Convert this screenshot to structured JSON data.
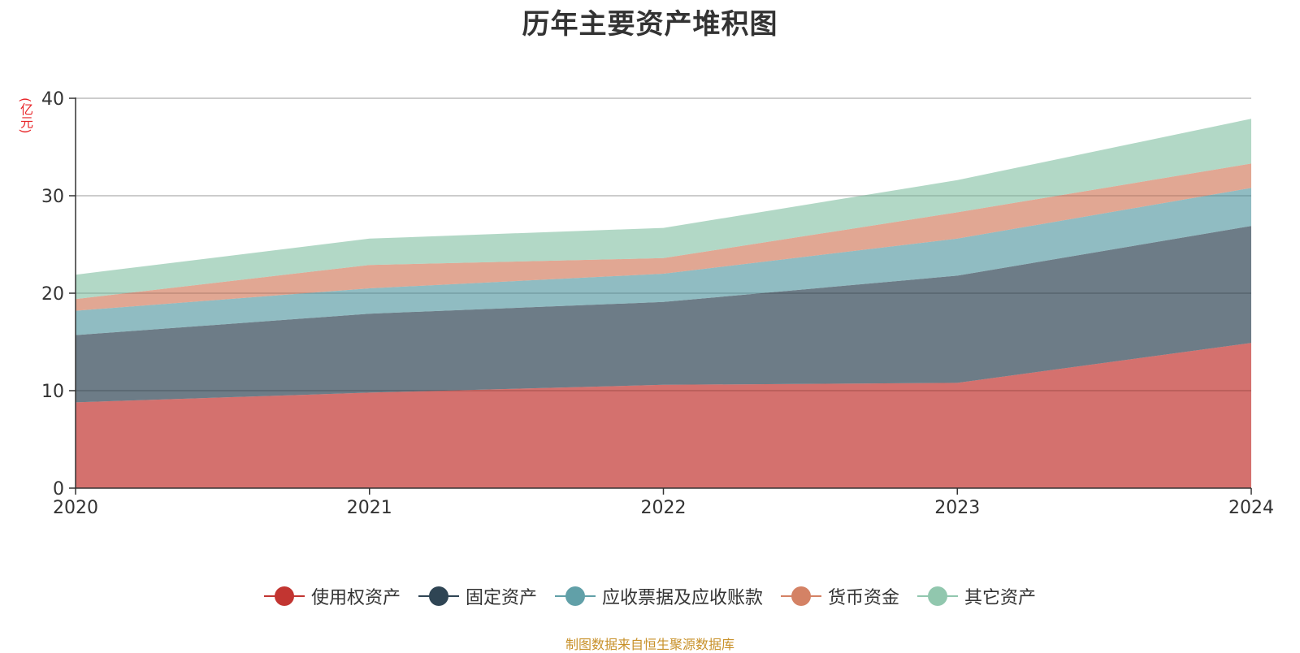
{
  "chart_data": {
    "type": "area",
    "stacked": true,
    "title": "历年主要资产堆积图",
    "unit": "(亿元)",
    "source": "制图数据来自恒生聚源数据库",
    "x": [
      "2020",
      "2021",
      "2022",
      "2023",
      "2024"
    ],
    "ylim": [
      0,
      40
    ],
    "yticks": [
      "0",
      "10",
      "20",
      "30",
      "40"
    ],
    "grid": true,
    "legend_position": "bottom",
    "series": [
      {
        "name": "使用权资产",
        "color": "#c23531",
        "values": [
          8.8,
          9.8,
          10.6,
          10.8,
          14.9
        ]
      },
      {
        "name": "固定资产",
        "color": "#2f4554",
        "values": [
          6.9,
          8.1,
          8.5,
          11.0,
          12.0
        ]
      },
      {
        "name": "应收票据及应收账款",
        "color": "#61a0a8",
        "values": [
          2.5,
          2.6,
          2.9,
          3.8,
          3.9
        ]
      },
      {
        "name": "货币资金",
        "color": "#d48265",
        "values": [
          1.2,
          2.4,
          1.6,
          2.7,
          2.5
        ]
      },
      {
        "name": "其它资产",
        "color": "#91c7ae",
        "values": [
          2.5,
          2.7,
          3.1,
          3.3,
          4.6
        ]
      }
    ]
  }
}
